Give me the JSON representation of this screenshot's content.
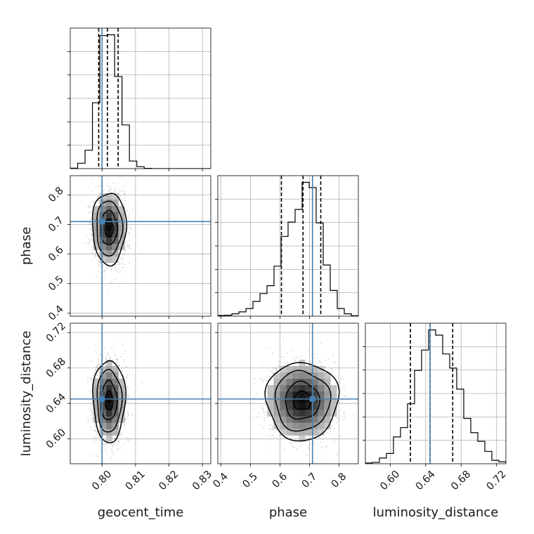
{
  "chart_data": {
    "type": "corner",
    "parameters": [
      "geocent_time",
      "phase",
      "luminosity_distance"
    ],
    "axis_labels": {
      "x": [
        "geocent_time",
        "phase",
        "luminosity_distance"
      ],
      "y": [
        "phase",
        "luminosity_distance"
      ]
    },
    "truths": {
      "geocent_time": 0.8,
      "phase": 0.71,
      "luminosity_distance": 0.645
    },
    "colors": {
      "truth": "#4682b4",
      "hist": "#000000",
      "grid": "#b0b0b0",
      "scatter": "#8c8c8c"
    },
    "grid": true,
    "ranges": {
      "geocent_time": [
        0.7905,
        0.8325
      ],
      "phase": [
        0.39,
        0.865
      ],
      "luminosity_distance": [
        0.572,
        0.7305
      ]
    },
    "ticks": {
      "geocent_time": [
        0.8,
        0.81,
        0.82,
        0.83
      ],
      "phase": [
        0.4,
        0.5,
        0.6,
        0.7,
        0.8
      ],
      "luminosity_distance": [
        0.6,
        0.64,
        0.68,
        0.72
      ]
    },
    "tick_labels": {
      "geocent_time": [
        "0.80",
        "0.81",
        "0.82",
        "0.83"
      ],
      "phase_x": [
        "0.4",
        "0.5",
        "0.6",
        "0.7",
        "0.8"
      ],
      "phase_y": [
        "0.4",
        "0.5",
        "0.6",
        "0.7",
        "0.8"
      ],
      "luminosity_distance_x": [
        "0.60",
        "0.64",
        "0.68",
        "0.72"
      ],
      "luminosity_distance_y": [
        "0.60",
        "0.64",
        "0.68",
        "0.72"
      ]
    },
    "quantiles": {
      "geocent_time": [
        0.799,
        0.8016,
        0.8048
      ],
      "phase": [
        0.605,
        0.678,
        0.738
      ],
      "luminosity_distance": [
        0.6228,
        0.645,
        0.6705
      ]
    },
    "histograms": {
      "geocent_time": {
        "bins": [
          0.7905,
          0.79271,
          0.79492,
          0.79713,
          0.79934,
          0.80155,
          0.80376,
          0.80597,
          0.80818,
          0.81039,
          0.8126,
          0.81481,
          0.81702,
          0.81923,
          0.82144,
          0.82365,
          0.82586,
          0.82807,
          0.83028,
          0.83249,
          0.8347
        ],
        "counts": [
          2,
          22,
          75,
          268,
          542,
          545,
          375,
          178,
          31,
          8,
          1,
          0,
          0,
          0,
          0,
          0,
          0,
          0,
          0,
          0
        ]
      },
      "phase": {
        "bins": [
          0.39,
          0.41375,
          0.4375,
          0.46125,
          0.485,
          0.50875,
          0.5325,
          0.55625,
          0.58,
          0.60375,
          0.6275,
          0.65125,
          0.675,
          0.69875,
          0.7225,
          0.74625,
          0.77,
          0.79375,
          0.8175,
          0.84125,
          0.865
        ],
        "counts": [
          3,
          4,
          10,
          18,
          32,
          62,
          95,
          128,
          210,
          335,
          395,
          448,
          562,
          540,
          392,
          215,
          108,
          32,
          10,
          2
        ]
      },
      "luminosity_distance": {
        "bins": [
          0.572,
          0.57993,
          0.58785,
          0.59578,
          0.6037,
          0.61163,
          0.61955,
          0.62748,
          0.6354,
          0.64333,
          0.65125,
          0.65918,
          0.6671,
          0.67503,
          0.68295,
          0.69088,
          0.6988,
          0.70673,
          0.71465,
          0.72258,
          0.7305
        ],
        "counts": [
          3,
          6,
          25,
          45,
          117,
          158,
          262,
          408,
          497,
          585,
          562,
          480,
          418,
          326,
          198,
          136,
          98,
          54,
          15,
          8
        ]
      }
    },
    "joint": [
      {
        "x": "geocent_time",
        "y": "phase",
        "mean": [
          0.8021,
          0.688
        ],
        "sd": [
          0.0024,
          0.058
        ],
        "contour_levels": [
          0.5,
          1.0,
          1.6,
          2.1
        ]
      },
      {
        "x": "geocent_time",
        "y": "luminosity_distance",
        "mean": [
          0.8021,
          0.643
        ],
        "sd": [
          0.0023,
          0.022
        ],
        "contour_levels": [
          0.5,
          1.0,
          1.6,
          2.1
        ]
      },
      {
        "x": "phase",
        "y": "luminosity_distance",
        "mean": [
          0.675,
          0.643
        ],
        "sd": [
          0.058,
          0.021
        ],
        "contour_levels": [
          0.5,
          1.0,
          1.6,
          2.1
        ]
      }
    ]
  }
}
